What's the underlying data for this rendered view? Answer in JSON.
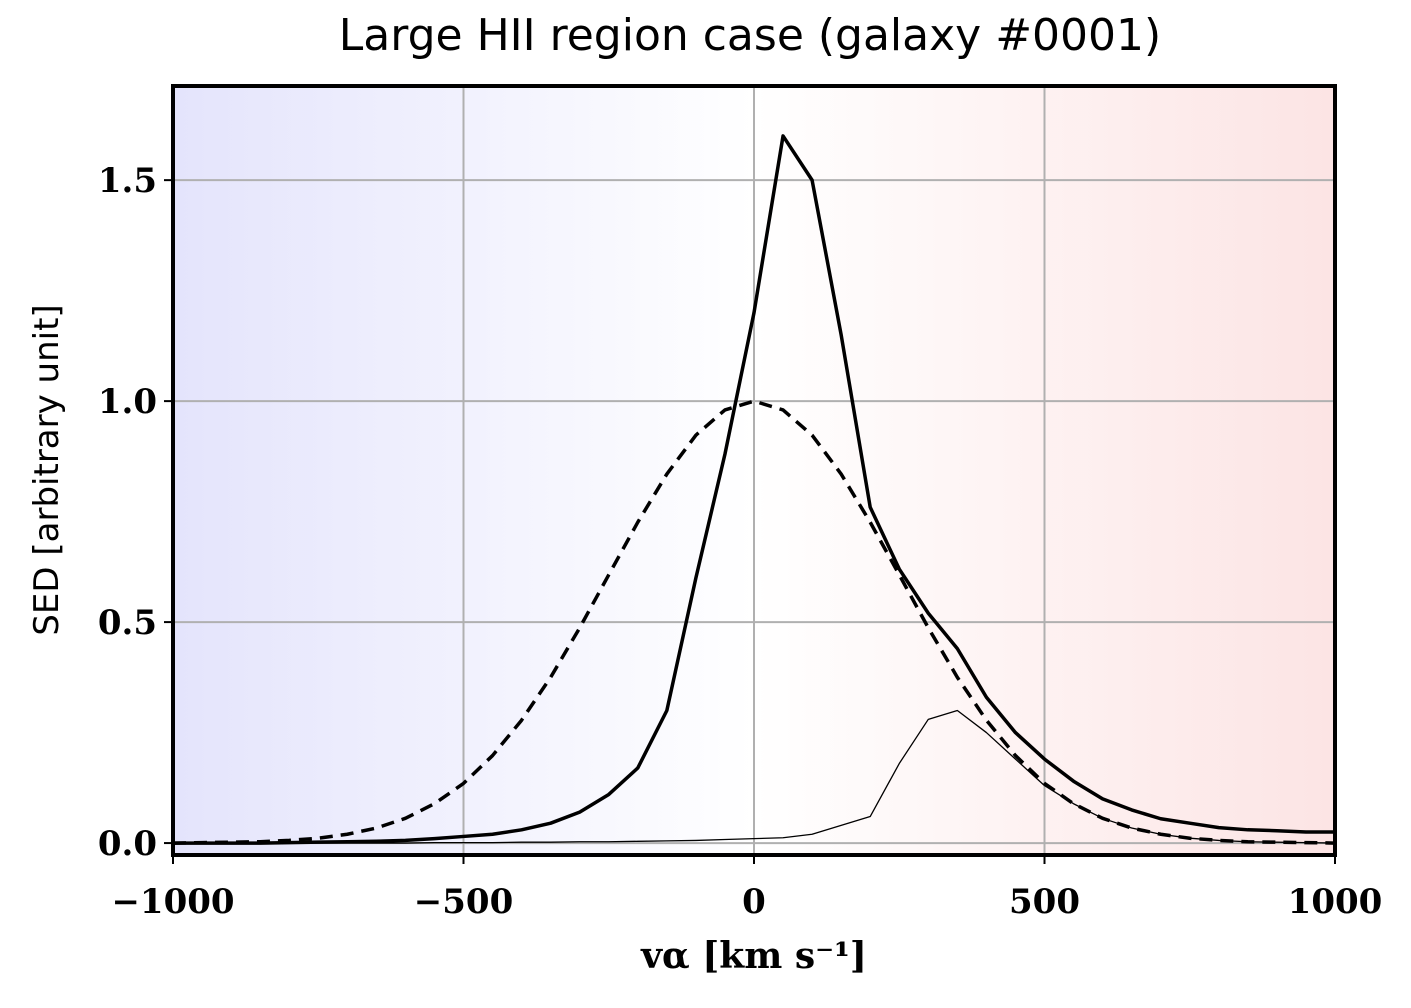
{
  "chart_data": {
    "type": "line",
    "title": "Large HII region case (galaxy #0001)",
    "x_label": "vα [km s⁻¹]",
    "y_label": "SED [arbitrary unit]",
    "x": [
      -1000,
      -950,
      -900,
      -850,
      -800,
      -750,
      -700,
      -650,
      -600,
      -550,
      -500,
      -450,
      -400,
      -350,
      -300,
      -250,
      -200,
      -150,
      -100,
      -50,
      0,
      50,
      100,
      150,
      200,
      250,
      300,
      350,
      400,
      450,
      500,
      550,
      600,
      650,
      700,
      750,
      800,
      850,
      900,
      950,
      1000
    ],
    "series": [
      {
        "color": "#000000",
        "linestyle": "solid",
        "linewidth": 3.5,
        "values": [
          0,
          0,
          0,
          0,
          0.001,
          0.002,
          0.003,
          0.004,
          0.006,
          0.01,
          0.015,
          0.02,
          0.03,
          0.045,
          0.07,
          0.11,
          0.17,
          0.3,
          0.6,
          0.88,
          1.2,
          1.6,
          1.5,
          1.15,
          0.76,
          0.62,
          0.52,
          0.44,
          0.33,
          0.25,
          0.19,
          0.14,
          0.1,
          0.075,
          0.055,
          0.045,
          0.035,
          0.03,
          0.028,
          0.025,
          0.025
        ]
      },
      {
        "color": "#000000",
        "linestyle": "dashed",
        "linewidth": 3.5,
        "values": [
          0,
          0.001,
          0.002,
          0.003,
          0.006,
          0.011,
          0.02,
          0.034,
          0.056,
          0.089,
          0.135,
          0.198,
          0.278,
          0.375,
          0.487,
          0.607,
          0.726,
          0.835,
          0.923,
          0.98,
          1,
          0.98,
          0.923,
          0.835,
          0.726,
          0.607,
          0.487,
          0.375,
          0.278,
          0.198,
          0.135,
          0.089,
          0.056,
          0.034,
          0.02,
          0.011,
          0.006,
          0.003,
          0.002,
          0.001,
          0
        ]
      },
      {
        "color": "#000000",
        "linestyle": "solid",
        "linewidth": 1.3,
        "values": [
          0,
          0,
          0,
          0,
          0,
          0,
          0,
          0,
          0,
          0.001,
          0.001,
          0.001,
          0.002,
          0.002,
          0.003,
          0.003,
          0.004,
          0.005,
          0.006,
          0.008,
          0.01,
          0.012,
          0.02,
          0.04,
          0.06,
          0.18,
          0.28,
          0.3,
          0.25,
          0.19,
          0.13,
          0.089,
          0.056,
          0.034,
          0.02,
          0.011,
          0.006,
          0.003,
          0.002,
          0.001,
          0
        ]
      }
    ],
    "xlim": [
      -1000,
      1000
    ],
    "ylim": [
      -0.027,
      1.713
    ],
    "xticks": [
      {
        "value": -1000,
        "label": "−1000"
      },
      {
        "value": -500,
        "label": "−500"
      },
      0,
      500,
      1000
    ],
    "yticks": [
      {
        "value": 0,
        "label": "0.0"
      },
      0.5,
      {
        "value": 1,
        "label": "1.0"
      },
      1.5
    ],
    "grid": true
  }
}
